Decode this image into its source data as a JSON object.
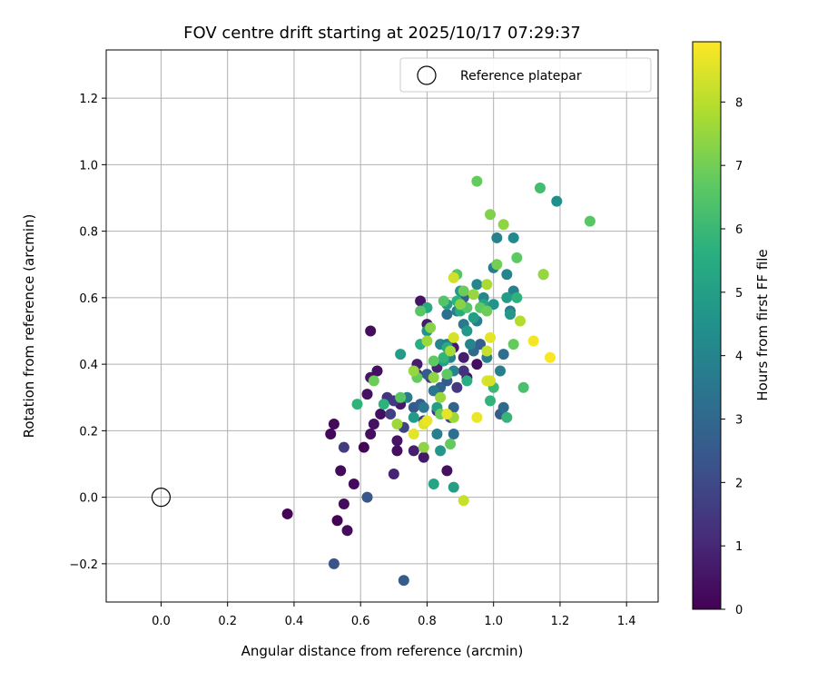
{
  "chart_data": {
    "type": "scatter",
    "title": "FOV centre drift starting at 2025/10/17 07:29:37",
    "xlabel": "Angular distance from reference (arcmin)",
    "ylabel": "Rotation from reference (arcmin)",
    "xlim": [
      -0.165,
      1.495
    ],
    "ylim": [
      -0.315,
      1.345
    ],
    "xticks": [
      0.0,
      0.2,
      0.4,
      0.6,
      0.8,
      1.0,
      1.2,
      1.4
    ],
    "xtick_labels": [
      "0.0",
      "0.2",
      "0.4",
      "0.6",
      "0.8",
      "1.0",
      "1.2",
      "1.4"
    ],
    "yticks": [
      -0.2,
      0.0,
      0.2,
      0.4,
      0.6,
      0.8,
      1.0,
      1.2
    ],
    "ytick_labels": [
      "−0.2",
      "0.0",
      "0.2",
      "0.4",
      "0.6",
      "0.8",
      "1.0",
      "1.2"
    ],
    "grid": true,
    "colormap": "viridis",
    "colorbar": {
      "label": "Hours from first FF file",
      "range": [
        0,
        8.95
      ],
      "ticks": [
        0,
        1,
        2,
        3,
        4,
        5,
        6,
        7,
        8
      ],
      "tick_labels": [
        "0",
        "1",
        "2",
        "3",
        "4",
        "5",
        "6",
        "7",
        "8"
      ]
    },
    "legend": {
      "position": "top-right",
      "label": "Reference platepar"
    },
    "reference_point": {
      "x": 0.0,
      "y": 0.0
    },
    "series": [
      {
        "points": [
          {
            "x": 0.38,
            "y": -0.05,
            "c": 0.1
          },
          {
            "x": 0.51,
            "y": 0.19,
            "c": 0.15
          },
          {
            "x": 0.52,
            "y": 0.22,
            "c": 0.2
          },
          {
            "x": 0.53,
            "y": -0.07,
            "c": 0.1
          },
          {
            "x": 0.54,
            "y": 0.08,
            "c": 0.2
          },
          {
            "x": 0.55,
            "y": -0.02,
            "c": 0.25
          },
          {
            "x": 0.56,
            "y": -0.1,
            "c": 0.3
          },
          {
            "x": 0.58,
            "y": 0.04,
            "c": 0.2
          },
          {
            "x": 0.61,
            "y": 0.15,
            "c": 0.1
          },
          {
            "x": 0.62,
            "y": 0.31,
            "c": 0.4
          },
          {
            "x": 0.63,
            "y": 0.19,
            "c": 0.35
          },
          {
            "x": 0.63,
            "y": 0.36,
            "c": 0.5
          },
          {
            "x": 0.63,
            "y": 0.5,
            "c": 0.3
          },
          {
            "x": 0.64,
            "y": 0.22,
            "c": 0.45
          },
          {
            "x": 0.65,
            "y": 0.38,
            "c": 0.4
          },
          {
            "x": 0.66,
            "y": 0.25,
            "c": 0.3
          },
          {
            "x": 0.7,
            "y": 0.07,
            "c": 0.9
          },
          {
            "x": 0.71,
            "y": 0.14,
            "c": 0.4
          },
          {
            "x": 0.71,
            "y": 0.17,
            "c": 0.5
          },
          {
            "x": 0.72,
            "y": 0.28,
            "c": 0.6
          },
          {
            "x": 0.76,
            "y": 0.14,
            "c": 0.8
          },
          {
            "x": 0.77,
            "y": 0.4,
            "c": 0.7
          },
          {
            "x": 0.78,
            "y": 0.59,
            "c": 0.5
          },
          {
            "x": 0.79,
            "y": 0.12,
            "c": 0.6
          },
          {
            "x": 0.8,
            "y": 0.52,
            "c": 0.7
          },
          {
            "x": 0.83,
            "y": 0.39,
            "c": 0.9
          },
          {
            "x": 0.86,
            "y": 0.08,
            "c": 0.4
          },
          {
            "x": 0.88,
            "y": 0.45,
            "c": 0.6
          },
          {
            "x": 0.91,
            "y": 0.42,
            "c": 0.7
          },
          {
            "x": 0.92,
            "y": 0.36,
            "c": 0.5
          },
          {
            "x": 0.95,
            "y": 0.4,
            "c": 0.3
          },
          {
            "x": 0.55,
            "y": 0.15,
            "c": 1.6
          },
          {
            "x": 0.68,
            "y": 0.3,
            "c": 1.4
          },
          {
            "x": 0.69,
            "y": 0.25,
            "c": 1.7
          },
          {
            "x": 0.7,
            "y": 0.29,
            "c": 1.5
          },
          {
            "x": 0.73,
            "y": 0.21,
            "c": 1.8
          },
          {
            "x": 0.77,
            "y": 0.37,
            "c": 1.2
          },
          {
            "x": 0.79,
            "y": 0.23,
            "c": 1.7
          },
          {
            "x": 0.81,
            "y": 0.36,
            "c": 1.5
          },
          {
            "x": 0.83,
            "y": 0.26,
            "c": 1.3
          },
          {
            "x": 0.87,
            "y": 0.24,
            "c": 1.9
          },
          {
            "x": 0.89,
            "y": 0.33,
            "c": 1.5
          },
          {
            "x": 0.91,
            "y": 0.38,
            "c": 1.3
          },
          {
            "x": 0.52,
            "y": -0.2,
            "c": 2.3
          },
          {
            "x": 0.62,
            "y": 0.0,
            "c": 2.4
          },
          {
            "x": 0.73,
            "y": -0.25,
            "c": 2.6
          },
          {
            "x": 0.76,
            "y": 0.27,
            "c": 2.5
          },
          {
            "x": 0.78,
            "y": 0.28,
            "c": 2.7
          },
          {
            "x": 0.8,
            "y": 0.37,
            "c": 2.6
          },
          {
            "x": 0.84,
            "y": 0.33,
            "c": 2.9
          },
          {
            "x": 0.86,
            "y": 0.35,
            "c": 2.5
          },
          {
            "x": 0.88,
            "y": 0.27,
            "c": 2.8
          },
          {
            "x": 0.88,
            "y": 0.19,
            "c": 3.2
          },
          {
            "x": 0.91,
            "y": 0.6,
            "c": 2.8
          },
          {
            "x": 0.94,
            "y": 0.44,
            "c": 3.0
          },
          {
            "x": 0.96,
            "y": 0.46,
            "c": 2.7
          },
          {
            "x": 1.02,
            "y": 0.25,
            "c": 2.6
          },
          {
            "x": 1.03,
            "y": 0.27,
            "c": 3.1
          },
          {
            "x": 1.03,
            "y": 0.43,
            "c": 3.2
          },
          {
            "x": 0.86,
            "y": 0.55,
            "c": 3.3
          },
          {
            "x": 0.74,
            "y": 0.3,
            "c": 3.7
          },
          {
            "x": 0.79,
            "y": 0.27,
            "c": 3.6
          },
          {
            "x": 0.82,
            "y": 0.32,
            "c": 3.5
          },
          {
            "x": 0.83,
            "y": 0.19,
            "c": 3.8
          },
          {
            "x": 0.84,
            "y": 0.46,
            "c": 4.0
          },
          {
            "x": 0.86,
            "y": 0.46,
            "c": 3.7
          },
          {
            "x": 0.87,
            "y": 0.42,
            "c": 3.9
          },
          {
            "x": 0.88,
            "y": 0.38,
            "c": 4.0
          },
          {
            "x": 0.89,
            "y": 0.56,
            "c": 3.8
          },
          {
            "x": 0.91,
            "y": 0.52,
            "c": 3.6
          },
          {
            "x": 0.93,
            "y": 0.46,
            "c": 4.0
          },
          {
            "x": 0.95,
            "y": 0.53,
            "c": 3.8
          },
          {
            "x": 0.97,
            "y": 0.6,
            "c": 4.1
          },
          {
            "x": 0.98,
            "y": 0.42,
            "c": 3.9
          },
          {
            "x": 1.0,
            "y": 0.69,
            "c": 3.7
          },
          {
            "x": 1.01,
            "y": 0.78,
            "c": 3.9
          },
          {
            "x": 1.02,
            "y": 0.38,
            "c": 3.8
          },
          {
            "x": 1.04,
            "y": 0.67,
            "c": 4.0
          },
          {
            "x": 1.05,
            "y": 0.56,
            "c": 3.7
          },
          {
            "x": 1.06,
            "y": 0.62,
            "c": 3.9
          },
          {
            "x": 1.06,
            "y": 0.78,
            "c": 4.2
          },
          {
            "x": 0.95,
            "y": 0.64,
            "c": 4.1
          },
          {
            "x": 0.72,
            "y": 0.43,
            "c": 4.9
          },
          {
            "x": 0.76,
            "y": 0.24,
            "c": 4.8
          },
          {
            "x": 0.8,
            "y": 0.5,
            "c": 4.6
          },
          {
            "x": 0.82,
            "y": 0.04,
            "c": 5.2
          },
          {
            "x": 0.83,
            "y": 0.27,
            "c": 5.0
          },
          {
            "x": 0.84,
            "y": 0.14,
            "c": 4.7
          },
          {
            "x": 0.85,
            "y": 0.41,
            "c": 5.1
          },
          {
            "x": 0.86,
            "y": 0.58,
            "c": 4.9
          },
          {
            "x": 0.88,
            "y": 0.03,
            "c": 5.0
          },
          {
            "x": 0.9,
            "y": 0.62,
            "c": 4.7
          },
          {
            "x": 0.92,
            "y": 0.5,
            "c": 4.8
          },
          {
            "x": 0.94,
            "y": 0.54,
            "c": 5.0
          },
          {
            "x": 0.97,
            "y": 0.58,
            "c": 5.2
          },
          {
            "x": 1.0,
            "y": 0.58,
            "c": 4.6
          },
          {
            "x": 1.04,
            "y": 0.6,
            "c": 4.9
          },
          {
            "x": 1.05,
            "y": 0.55,
            "c": 4.8
          },
          {
            "x": 1.19,
            "y": 0.89,
            "c": 4.4
          },
          {
            "x": 0.59,
            "y": 0.28,
            "c": 5.8
          },
          {
            "x": 0.67,
            "y": 0.28,
            "c": 5.7
          },
          {
            "x": 0.78,
            "y": 0.46,
            "c": 5.6
          },
          {
            "x": 0.8,
            "y": 0.57,
            "c": 5.4
          },
          {
            "x": 0.85,
            "y": 0.42,
            "c": 5.8
          },
          {
            "x": 0.86,
            "y": 0.45,
            "c": 5.5
          },
          {
            "x": 0.89,
            "y": 0.59,
            "c": 5.7
          },
          {
            "x": 0.9,
            "y": 0.56,
            "c": 5.5
          },
          {
            "x": 0.92,
            "y": 0.35,
            "c": 5.6
          },
          {
            "x": 0.99,
            "y": 0.29,
            "c": 5.8
          },
          {
            "x": 1.0,
            "y": 0.33,
            "c": 6.0
          },
          {
            "x": 1.04,
            "y": 0.24,
            "c": 5.9
          },
          {
            "x": 1.07,
            "y": 0.6,
            "c": 5.7
          },
          {
            "x": 1.14,
            "y": 0.93,
            "c": 6.2
          },
          {
            "x": 1.09,
            "y": 0.33,
            "c": 6.3
          },
          {
            "x": 0.64,
            "y": 0.35,
            "c": 6.9
          },
          {
            "x": 0.72,
            "y": 0.3,
            "c": 6.6
          },
          {
            "x": 0.77,
            "y": 0.36,
            "c": 6.8
          },
          {
            "x": 0.78,
            "y": 0.56,
            "c": 6.6
          },
          {
            "x": 0.82,
            "y": 0.41,
            "c": 6.7
          },
          {
            "x": 0.84,
            "y": 0.25,
            "c": 6.9
          },
          {
            "x": 0.85,
            "y": 0.59,
            "c": 6.5
          },
          {
            "x": 0.86,
            "y": 0.37,
            "c": 6.7
          },
          {
            "x": 0.87,
            "y": 0.16,
            "c": 6.8
          },
          {
            "x": 0.89,
            "y": 0.67,
            "c": 6.6
          },
          {
            "x": 0.91,
            "y": 0.62,
            "c": 6.9
          },
          {
            "x": 0.92,
            "y": 0.57,
            "c": 6.5
          },
          {
            "x": 0.95,
            "y": 0.95,
            "c": 6.8
          },
          {
            "x": 0.96,
            "y": 0.57,
            "c": 6.7
          },
          {
            "x": 0.98,
            "y": 0.56,
            "c": 6.9
          },
          {
            "x": 0.99,
            "y": 0.85,
            "c": 7.2
          },
          {
            "x": 1.01,
            "y": 0.7,
            "c": 7.0
          },
          {
            "x": 1.06,
            "y": 0.46,
            "c": 6.8
          },
          {
            "x": 1.07,
            "y": 0.72,
            "c": 6.7
          },
          {
            "x": 1.15,
            "y": 0.67,
            "c": 6.9
          },
          {
            "x": 1.29,
            "y": 0.83,
            "c": 6.6
          },
          {
            "x": 0.71,
            "y": 0.22,
            "c": 7.6
          },
          {
            "x": 0.76,
            "y": 0.38,
            "c": 7.5
          },
          {
            "x": 0.79,
            "y": 0.15,
            "c": 7.4
          },
          {
            "x": 0.8,
            "y": 0.47,
            "c": 7.6
          },
          {
            "x": 0.82,
            "y": 0.36,
            "c": 7.4
          },
          {
            "x": 0.84,
            "y": 0.3,
            "c": 7.5
          },
          {
            "x": 0.87,
            "y": 0.44,
            "c": 7.7
          },
          {
            "x": 0.88,
            "y": 0.24,
            "c": 7.6
          },
          {
            "x": 0.9,
            "y": 0.58,
            "c": 7.3
          },
          {
            "x": 0.94,
            "y": 0.61,
            "c": 7.5
          },
          {
            "x": 0.98,
            "y": 0.64,
            "c": 7.8
          },
          {
            "x": 1.03,
            "y": 0.82,
            "c": 7.4
          },
          {
            "x": 1.08,
            "y": 0.53,
            "c": 7.9
          },
          {
            "x": 1.15,
            "y": 0.67,
            "c": 7.5
          },
          {
            "x": 0.81,
            "y": 0.51,
            "c": 7.3
          },
          {
            "x": 0.76,
            "y": 0.19,
            "c": 8.6
          },
          {
            "x": 0.79,
            "y": 0.22,
            "c": 8.5
          },
          {
            "x": 0.8,
            "y": 0.23,
            "c": 8.7
          },
          {
            "x": 0.86,
            "y": 0.25,
            "c": 8.6
          },
          {
            "x": 0.88,
            "y": 0.48,
            "c": 8.4
          },
          {
            "x": 0.88,
            "y": 0.66,
            "c": 8.3
          },
          {
            "x": 0.91,
            "y": -0.01,
            "c": 8.2
          },
          {
            "x": 0.95,
            "y": 0.24,
            "c": 8.7
          },
          {
            "x": 0.98,
            "y": 0.35,
            "c": 8.5
          },
          {
            "x": 0.99,
            "y": 0.48,
            "c": 8.6
          },
          {
            "x": 0.98,
            "y": 0.44,
            "c": 8.2
          },
          {
            "x": 1.12,
            "y": 0.47,
            "c": 8.8
          },
          {
            "x": 1.17,
            "y": 0.42,
            "c": 8.9
          },
          {
            "x": 0.99,
            "y": 0.35,
            "c": 8.4
          }
        ]
      }
    ]
  }
}
